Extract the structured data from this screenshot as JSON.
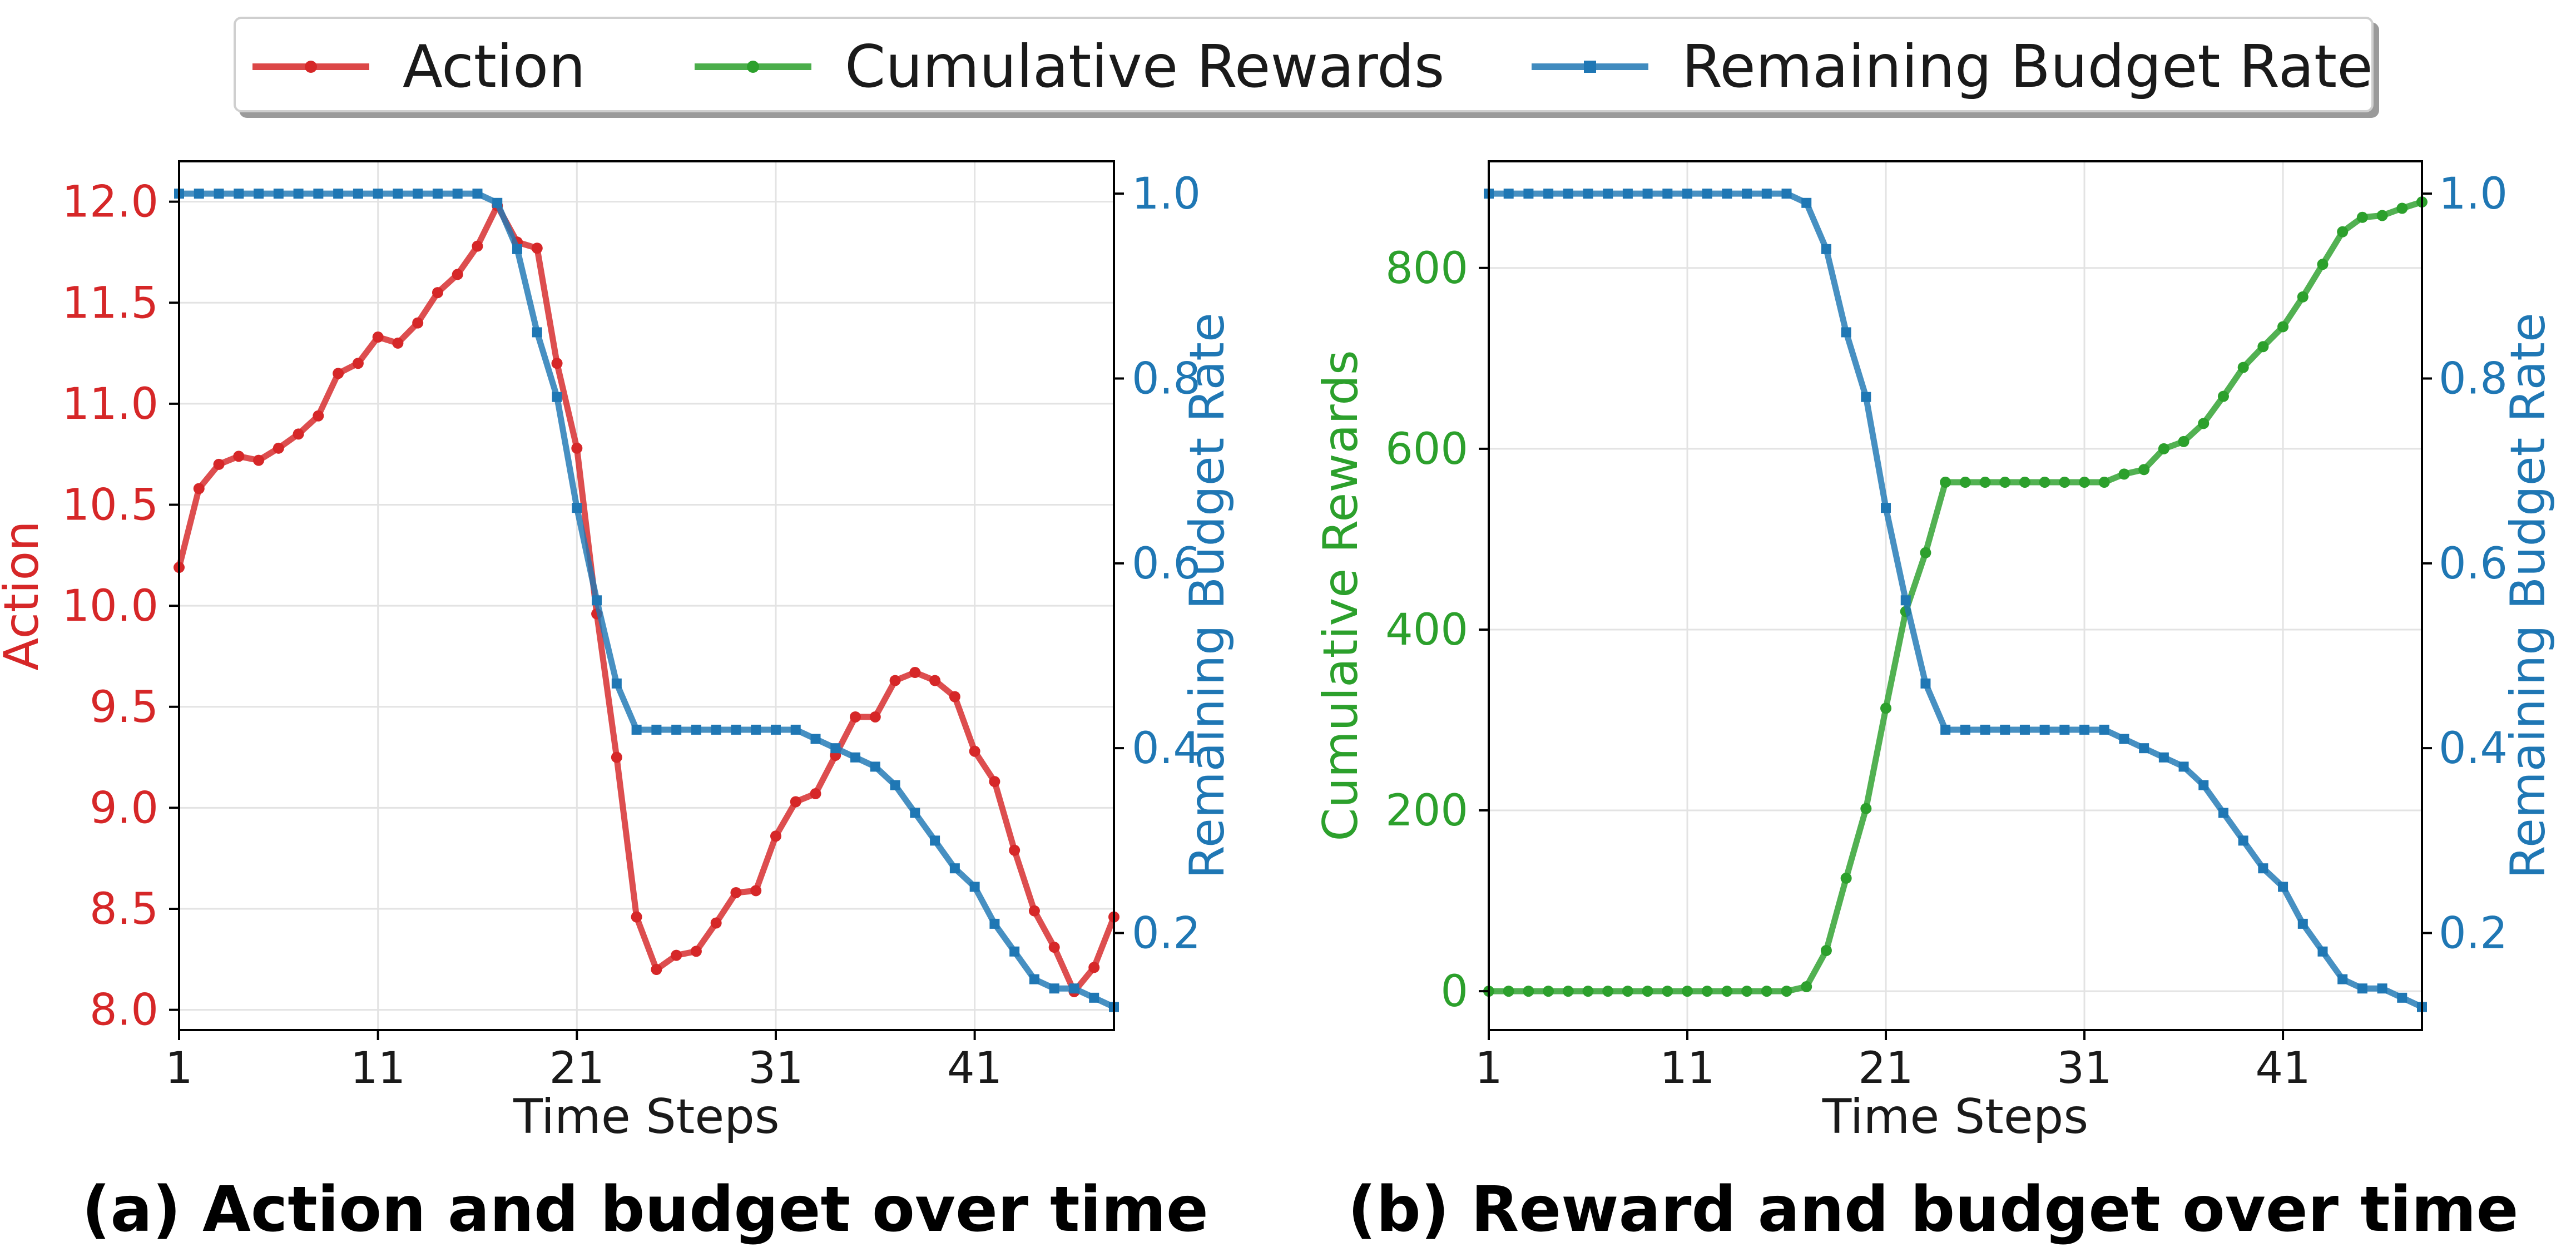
{
  "legend": [
    {
      "label": "Action",
      "color": "#d62728",
      "marker": "circle"
    },
    {
      "label": "Cumulative Rewards",
      "color": "#2ca02c",
      "marker": "circle"
    },
    {
      "label": "Remaining Budget Rate",
      "color": "#1f77b4",
      "marker": "square"
    }
  ],
  "captions": {
    "a": "(a) Action and budget over time",
    "b": "(b) Reward and budget over time"
  },
  "chart_data": [
    {
      "type": "line",
      "title": "(a) Action and budget over time",
      "xlabel": "Time Steps",
      "x_range": [
        1,
        48
      ],
      "x_ticks": [
        1,
        11,
        21,
        31,
        41
      ],
      "grid": true,
      "left_axis": {
        "label": "Action",
        "color": "#d62728",
        "range": [
          7.9,
          12.2
        ],
        "ticks": [
          "8.0",
          "8.5",
          "9.0",
          "9.5",
          "10.0",
          "10.5",
          "11.0",
          "11.5",
          "12.0"
        ]
      },
      "right_axis": {
        "label": "Remaining Budget Rate",
        "color": "#1f77b4",
        "range": [
          0.095,
          1.035
        ],
        "ticks": [
          "0.2",
          "0.4",
          "0.6",
          "0.8",
          "1.0"
        ]
      },
      "series": [
        {
          "name": "Action",
          "axis": "left",
          "color": "#d62728",
          "marker": "circle",
          "x": [
            1,
            2,
            3,
            4,
            5,
            6,
            7,
            8,
            9,
            10,
            11,
            12,
            13,
            14,
            15,
            16,
            17,
            18,
            19,
            20,
            21,
            22,
            23,
            24,
            25,
            26,
            27,
            28,
            29,
            30,
            31,
            32,
            33,
            34,
            35,
            36,
            37,
            38,
            39,
            40,
            41,
            42,
            43,
            44,
            45,
            46,
            47,
            48
          ],
          "values": [
            10.19,
            10.58,
            10.7,
            10.74,
            10.72,
            10.78,
            10.85,
            10.94,
            11.15,
            11.2,
            11.33,
            11.3,
            11.4,
            11.55,
            11.64,
            11.78,
            11.98,
            11.8,
            11.77,
            11.2,
            10.78,
            9.96,
            9.25,
            8.46,
            8.2,
            8.27,
            8.29,
            8.43,
            8.58,
            8.59,
            8.86,
            9.03,
            9.07,
            9.26,
            9.45,
            9.45,
            9.63,
            9.67,
            9.63,
            9.55,
            9.28,
            9.13,
            8.79,
            8.49,
            8.31,
            8.09,
            8.21,
            8.46
          ]
        },
        {
          "name": "Remaining Budget Rate",
          "axis": "right",
          "color": "#1f77b4",
          "marker": "square",
          "x": [
            1,
            2,
            3,
            4,
            5,
            6,
            7,
            8,
            9,
            10,
            11,
            12,
            13,
            14,
            15,
            16,
            17,
            18,
            19,
            20,
            21,
            22,
            23,
            24,
            25,
            26,
            27,
            28,
            29,
            30,
            31,
            32,
            33,
            34,
            35,
            36,
            37,
            38,
            39,
            40,
            41,
            42,
            43,
            44,
            45,
            46,
            47,
            48
          ],
          "values": [
            1.0,
            1.0,
            1.0,
            1.0,
            1.0,
            1.0,
            1.0,
            1.0,
            1.0,
            1.0,
            1.0,
            1.0,
            1.0,
            1.0,
            1.0,
            1.0,
            0.99,
            0.94,
            0.85,
            0.78,
            0.66,
            0.56,
            0.47,
            0.42,
            0.42,
            0.42,
            0.42,
            0.42,
            0.42,
            0.42,
            0.42,
            0.42,
            0.41,
            0.4,
            0.39,
            0.38,
            0.36,
            0.33,
            0.3,
            0.27,
            0.25,
            0.21,
            0.18,
            0.15,
            0.14,
            0.14,
            0.13,
            0.12
          ]
        }
      ]
    },
    {
      "type": "line",
      "title": "(b) Reward and budget over time",
      "xlabel": "Time Steps",
      "x_range": [
        1,
        48
      ],
      "x_ticks": [
        1,
        11,
        21,
        31,
        41
      ],
      "grid": true,
      "left_axis": {
        "label": "Cumulative Rewards",
        "color": "#2ca02c",
        "range": [
          -43,
          918
        ],
        "ticks": [
          "0",
          "200",
          "400",
          "600",
          "800"
        ]
      },
      "right_axis": {
        "label": "Remaining Budget Rate",
        "color": "#1f77b4",
        "range": [
          0.095,
          1.035
        ],
        "ticks": [
          "0.2",
          "0.4",
          "0.6",
          "0.8",
          "1.0"
        ]
      },
      "series": [
        {
          "name": "Cumulative Rewards",
          "axis": "left",
          "color": "#2ca02c",
          "marker": "circle",
          "x": [
            1,
            2,
            3,
            4,
            5,
            6,
            7,
            8,
            9,
            10,
            11,
            12,
            13,
            14,
            15,
            16,
            17,
            18,
            19,
            20,
            21,
            22,
            23,
            24,
            25,
            26,
            27,
            28,
            29,
            30,
            31,
            32,
            33,
            34,
            35,
            36,
            37,
            38,
            39,
            40,
            41,
            42,
            43,
            44,
            45,
            46,
            47,
            48
          ],
          "values": [
            0,
            0,
            0,
            0,
            0,
            0,
            0,
            0,
            0,
            0,
            0,
            0,
            0,
            0,
            0,
            0,
            5,
            45,
            125,
            202,
            313,
            420,
            485,
            563,
            563,
            563,
            563,
            563,
            563,
            563,
            563,
            563,
            572,
            577,
            600,
            608,
            628,
            658,
            690,
            713,
            735,
            768,
            804,
            840,
            856,
            858,
            866,
            873
          ]
        },
        {
          "name": "Remaining Budget Rate",
          "axis": "right",
          "color": "#1f77b4",
          "marker": "square",
          "x": [
            1,
            2,
            3,
            4,
            5,
            6,
            7,
            8,
            9,
            10,
            11,
            12,
            13,
            14,
            15,
            16,
            17,
            18,
            19,
            20,
            21,
            22,
            23,
            24,
            25,
            26,
            27,
            28,
            29,
            30,
            31,
            32,
            33,
            34,
            35,
            36,
            37,
            38,
            39,
            40,
            41,
            42,
            43,
            44,
            45,
            46,
            47,
            48
          ],
          "values": [
            1.0,
            1.0,
            1.0,
            1.0,
            1.0,
            1.0,
            1.0,
            1.0,
            1.0,
            1.0,
            1.0,
            1.0,
            1.0,
            1.0,
            1.0,
            1.0,
            0.99,
            0.94,
            0.85,
            0.78,
            0.66,
            0.56,
            0.47,
            0.42,
            0.42,
            0.42,
            0.42,
            0.42,
            0.42,
            0.42,
            0.42,
            0.42,
            0.41,
            0.4,
            0.39,
            0.38,
            0.36,
            0.33,
            0.3,
            0.27,
            0.25,
            0.21,
            0.18,
            0.15,
            0.14,
            0.14,
            0.13,
            0.12
          ]
        }
      ]
    }
  ]
}
